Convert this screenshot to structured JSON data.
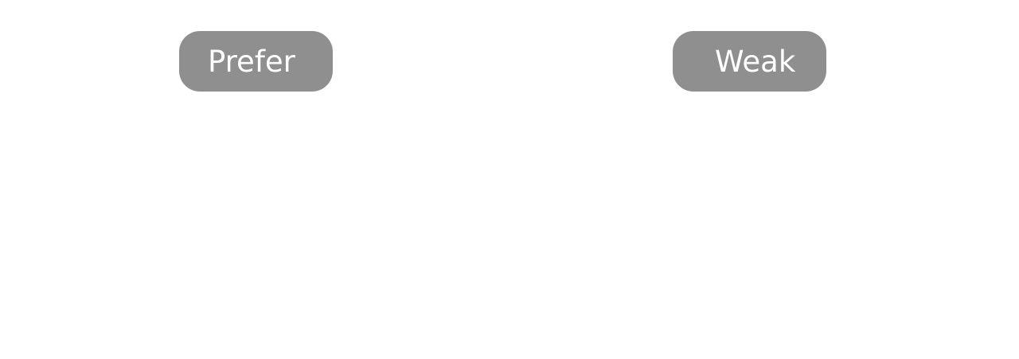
{
  "buttons": {
    "prefer_label": "Prefer",
    "weak_label": "Weak"
  },
  "colors": {
    "pill_background": "#8f8f8f",
    "pill_text": "#ffffff",
    "page_background": "#ffffff"
  }
}
